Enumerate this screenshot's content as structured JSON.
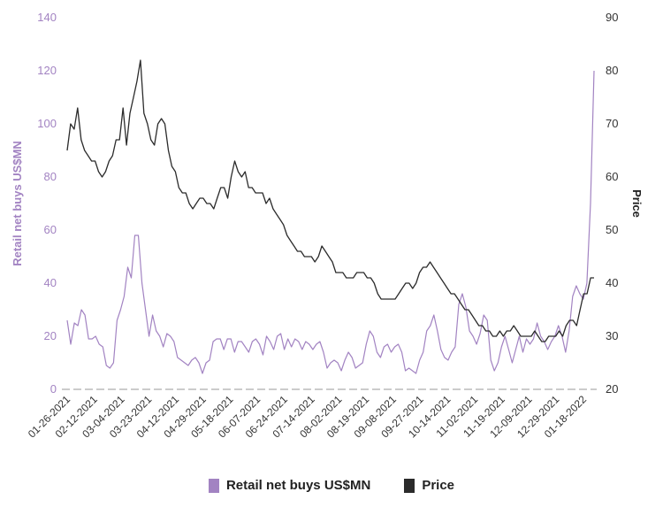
{
  "chart_data": {
    "type": "line",
    "title": "",
    "xlabel": "",
    "y_left_label": "Retail net buys US$MN",
    "y_right_label": "Price",
    "y_left_range": [
      0,
      140
    ],
    "y_left_ticks": [
      0,
      20,
      40,
      60,
      80,
      100,
      120,
      140
    ],
    "y_right_range": [
      20,
      90
    ],
    "y_right_ticks": [
      20,
      30,
      40,
      50,
      60,
      70,
      80,
      90
    ],
    "x_tick_labels": [
      "01-26-2021",
      "02-12-2021",
      "03-04-2021",
      "03-23-2021",
      "04-12-2021",
      "04-29-2021",
      "05-18-2021",
      "06-07-2021",
      "06-24-2021",
      "07-14-2021",
      "08-02-2021",
      "08-19-2021",
      "09-08-2021",
      "09-27-2021",
      "10-14-2021",
      "11-02-2021",
      "11-19-2021",
      "12-09-2021",
      "12-29-2021",
      "01-18-2022"
    ],
    "grid": false,
    "legend_position": "bottom",
    "colors": {
      "retail": "#a283c2",
      "price": "#2b2b2b",
      "left_axis_text": "#a283c2",
      "right_axis_text": "#333333"
    },
    "series": [
      {
        "name": "Retail net buys US$MN",
        "axis": "left",
        "values": [
          26,
          17,
          25,
          24,
          30,
          28,
          19,
          19,
          20,
          17,
          16,
          9,
          8,
          10,
          26,
          30,
          35,
          46,
          42,
          58,
          58,
          40,
          30,
          20,
          28,
          22,
          20,
          16,
          21,
          20,
          18,
          12,
          11,
          10,
          9,
          11,
          12,
          10,
          6,
          10,
          11,
          18,
          19,
          19,
          15,
          19,
          19,
          14,
          18,
          18,
          16,
          14,
          18,
          19,
          17,
          13,
          20,
          18,
          15,
          20,
          21,
          15,
          19,
          16,
          19,
          18,
          15,
          18,
          17,
          15,
          17,
          18,
          14,
          8,
          10,
          11,
          10,
          7,
          11,
          14,
          12,
          8,
          9,
          10,
          17,
          22,
          20,
          14,
          12,
          16,
          17,
          14,
          16,
          17,
          14,
          7,
          8,
          7,
          6,
          11,
          14,
          22,
          24,
          28,
          22,
          15,
          12,
          11,
          14,
          16,
          32,
          36,
          31,
          22,
          20,
          17,
          21,
          28,
          26,
          11,
          7,
          10,
          16,
          20,
          15,
          10,
          15,
          20,
          14,
          19,
          17,
          19,
          25,
          20,
          18,
          15,
          18,
          20,
          24,
          20,
          14,
          22,
          35,
          39,
          36,
          34,
          40,
          70,
          120
        ]
      },
      {
        "name": "Price",
        "axis": "right",
        "values": [
          65,
          70,
          69,
          73,
          67,
          65,
          64,
          63,
          63,
          61,
          60,
          61,
          63,
          64,
          67,
          67,
          73,
          66,
          72,
          75,
          78,
          82,
          72,
          70,
          67,
          66,
          70,
          71,
          70,
          65,
          62,
          61,
          58,
          57,
          57,
          55,
          54,
          55,
          56,
          56,
          55,
          55,
          54,
          56,
          58,
          58,
          56,
          60,
          63,
          61,
          60,
          61,
          58,
          58,
          57,
          57,
          57,
          55,
          56,
          54,
          53,
          52,
          51,
          49,
          48,
          47,
          46,
          46,
          45,
          45,
          45,
          44,
          45,
          47,
          46,
          45,
          44,
          42,
          42,
          42,
          41,
          41,
          41,
          42,
          42,
          42,
          41,
          41,
          40,
          38,
          37,
          37,
          37,
          37,
          37,
          38,
          39,
          40,
          40,
          39,
          40,
          42,
          43,
          43,
          44,
          43,
          42,
          41,
          40,
          39,
          38,
          38,
          37,
          36,
          35,
          35,
          34,
          33,
          32,
          32,
          31,
          31,
          30,
          30,
          31,
          30,
          31,
          31,
          32,
          31,
          30,
          30,
          30,
          30,
          31,
          30,
          29,
          29,
          30,
          30,
          30,
          31,
          30,
          32,
          33,
          33,
          32,
          35,
          38,
          38,
          41,
          41
        ]
      }
    ]
  },
  "legend": [
    {
      "label": "Retail net buys US$MN",
      "color": "#a283c2"
    },
    {
      "label": "Price",
      "color": "#2b2b2b"
    }
  ]
}
